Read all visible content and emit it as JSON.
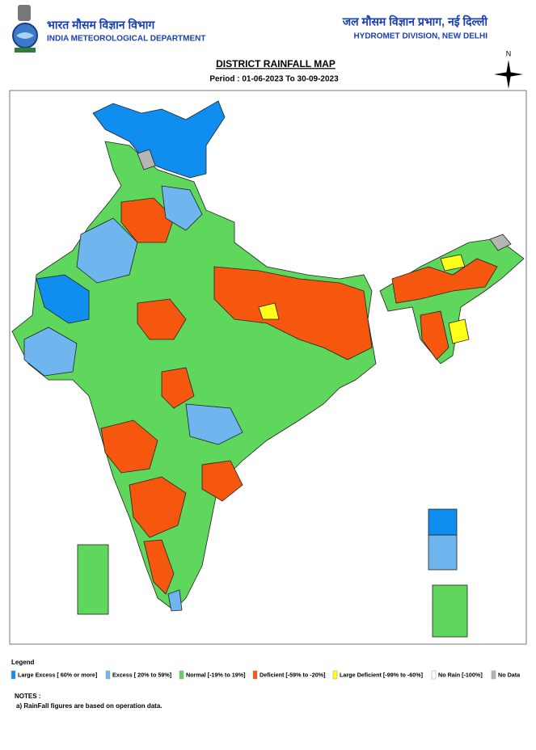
{
  "header": {
    "org_hindi": "भारत मौसम विज्ञान विभाग",
    "org_english": "INDIA METEOROLOGICAL DEPARTMENT",
    "division_hindi": "जल मौसम विज्ञान प्रभाग, नई दिल्ली",
    "division_english": "HYDROMET DIVISION, NEW DELHI"
  },
  "map": {
    "title": "DISTRICT RAINFALL MAP",
    "period": "Period : 01-06-2023 To 30-09-2023",
    "north": "N"
  },
  "legend": {
    "title": "Legend",
    "items": [
      {
        "label": "Large Excess [ 60% or more]",
        "color": "#0f8ef0"
      },
      {
        "label": "Excess [ 20% to 59%]",
        "color": "#6fb6ee"
      },
      {
        "label": "Normal [-19% to 19%]",
        "color": "#5fd65c"
      },
      {
        "label": "Deficient [-59% to -20%]",
        "color": "#f6570e"
      },
      {
        "label": "Large Deficient [-99% to -60%]",
        "color": "#ffff1a"
      },
      {
        "label": "No Rain  [-100%]",
        "color": "#ffffff"
      },
      {
        "label": "No Data",
        "color": "#b5b5b5"
      }
    ]
  },
  "notes": {
    "title": "NOTES :",
    "items": [
      "a) RainFall figures are based on operation data."
    ]
  }
}
